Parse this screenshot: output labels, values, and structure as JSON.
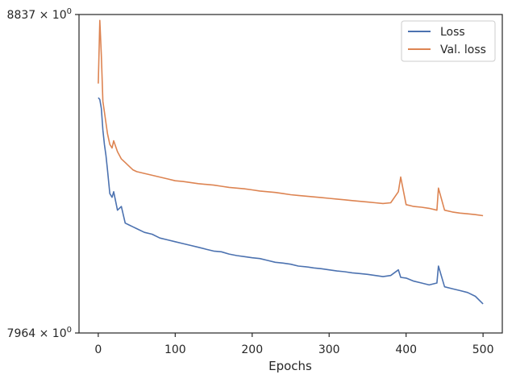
{
  "chart_data": {
    "type": "line",
    "title": "",
    "xlabel": "Epochs",
    "ylabel": "",
    "yscale": "log",
    "xlim": [
      -25,
      525
    ],
    "ylim": [
      0.7964,
      0.8837
    ],
    "xticks": [
      0,
      100,
      200,
      300,
      400,
      500
    ],
    "xtick_labels": [
      "0",
      "100",
      "200",
      "300",
      "400",
      "500"
    ],
    "yticks": [
      0.8837,
      0.7964
    ],
    "ytick_labels": [
      {
        "base": "8837",
        "sep": " × ",
        "mant": "10",
        "exp": "0"
      },
      {
        "base": "7964",
        "sep": " × ",
        "mant": "10",
        "exp": "0"
      }
    ],
    "grid": false,
    "legend": "top-right",
    "x": [
      0,
      2,
      4,
      6,
      8,
      10,
      12,
      15,
      18,
      20,
      25,
      30,
      35,
      40,
      45,
      50,
      60,
      70,
      80,
      90,
      100,
      110,
      120,
      130,
      140,
      150,
      160,
      170,
      180,
      190,
      200,
      210,
      220,
      230,
      240,
      250,
      260,
      270,
      280,
      290,
      300,
      310,
      320,
      330,
      340,
      350,
      360,
      370,
      380,
      390,
      393,
      400,
      410,
      420,
      430,
      440,
      442,
      450,
      460,
      470,
      480,
      490,
      500
    ],
    "series": [
      {
        "name": "Loss",
        "color": "#4c72b0",
        "values": [
          0.86,
          0.8595,
          0.857,
          0.851,
          0.847,
          0.844,
          0.84,
          0.8335,
          0.8325,
          0.834,
          0.829,
          0.83,
          0.8255,
          0.825,
          0.8245,
          0.824,
          0.823,
          0.8225,
          0.8215,
          0.821,
          0.8205,
          0.82,
          0.8195,
          0.819,
          0.8185,
          0.818,
          0.8178,
          0.8172,
          0.8168,
          0.8165,
          0.8162,
          0.816,
          0.8155,
          0.815,
          0.8148,
          0.8145,
          0.814,
          0.8138,
          0.8135,
          0.8133,
          0.813,
          0.8127,
          0.8125,
          0.8122,
          0.812,
          0.8118,
          0.8115,
          0.8112,
          0.8115,
          0.813,
          0.811,
          0.8108,
          0.81,
          0.8095,
          0.809,
          0.8095,
          0.814,
          0.8085,
          0.808,
          0.8075,
          0.807,
          0.806,
          0.804
        ]
      },
      {
        "name": "Val. loss",
        "color": "#dd8452",
        "values": [
          0.864,
          0.882,
          0.872,
          0.859,
          0.856,
          0.853,
          0.85,
          0.847,
          0.846,
          0.848,
          0.845,
          0.843,
          0.842,
          0.841,
          0.84,
          0.8395,
          0.839,
          0.8385,
          0.838,
          0.8375,
          0.837,
          0.8368,
          0.8365,
          0.8362,
          0.836,
          0.8358,
          0.8355,
          0.8352,
          0.835,
          0.8348,
          0.8345,
          0.8342,
          0.834,
          0.8338,
          0.8335,
          0.8332,
          0.833,
          0.8328,
          0.8326,
          0.8324,
          0.8322,
          0.832,
          0.8318,
          0.8316,
          0.8314,
          0.8312,
          0.831,
          0.8308,
          0.831,
          0.834,
          0.838,
          0.8305,
          0.83,
          0.8298,
          0.8295,
          0.829,
          0.835,
          0.829,
          0.8285,
          0.8282,
          0.828,
          0.8278,
          0.8275
        ]
      }
    ]
  }
}
